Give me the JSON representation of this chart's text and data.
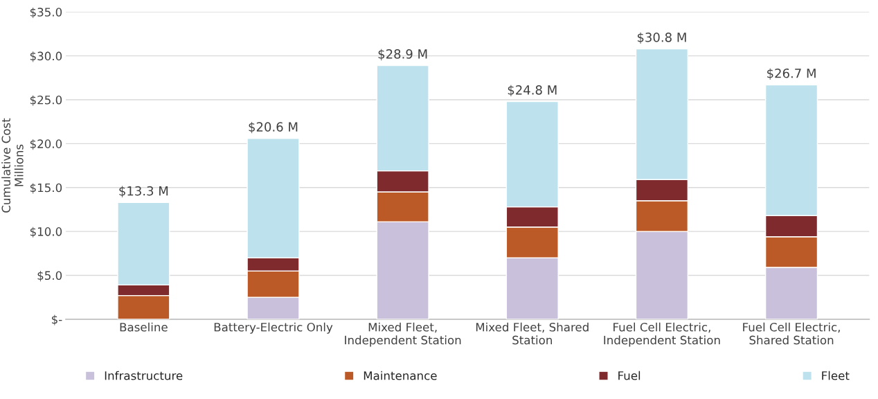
{
  "chart_data": {
    "type": "bar",
    "stacked": true,
    "ylabel": "Cumulative Cost\nMillions",
    "categories": [
      "Baseline",
      "Battery-Electric Only",
      "Mixed Fleet,\nIndependent Station",
      "Mixed Fleet, Shared\nStation",
      "Fuel Cell Electric,\nIndependent Station",
      "Fuel Cell Electric,\nShared Station"
    ],
    "series": [
      {
        "name": "Infrastructure",
        "color": "#c9c1db",
        "values": [
          0,
          2.5,
          11.1,
          7.0,
          10.0,
          5.9
        ]
      },
      {
        "name": "Maintenance",
        "color": "#bc5a27",
        "values": [
          2.7,
          3.0,
          3.4,
          3.5,
          3.5,
          3.5
        ]
      },
      {
        "name": "Fuel",
        "color": "#7f2b2e",
        "values": [
          1.2,
          1.5,
          2.4,
          2.3,
          2.4,
          2.4
        ]
      },
      {
        "name": "Fleet",
        "color": "#bde2ee",
        "values": [
          9.4,
          13.6,
          12.0,
          12.0,
          14.9,
          14.9
        ]
      }
    ],
    "totals": [
      "$13.3 M",
      "$20.6 M",
      "$28.9 M",
      "$24.8 M",
      "$30.8 M",
      "$26.7 M"
    ],
    "ylim": [
      0,
      35
    ],
    "yticks": [
      {
        "value": 0,
        "label": "$-"
      },
      {
        "value": 5,
        "label": "$5.0"
      },
      {
        "value": 10,
        "label": "$10.0"
      },
      {
        "value": 15,
        "label": "$15.0"
      },
      {
        "value": 20,
        "label": "$20.0"
      },
      {
        "value": 25,
        "label": "$25.0"
      },
      {
        "value": 30,
        "label": "$30.0"
      },
      {
        "value": 35,
        "label": "$35.0"
      }
    ],
    "grid": "y",
    "legend": "bottom"
  }
}
